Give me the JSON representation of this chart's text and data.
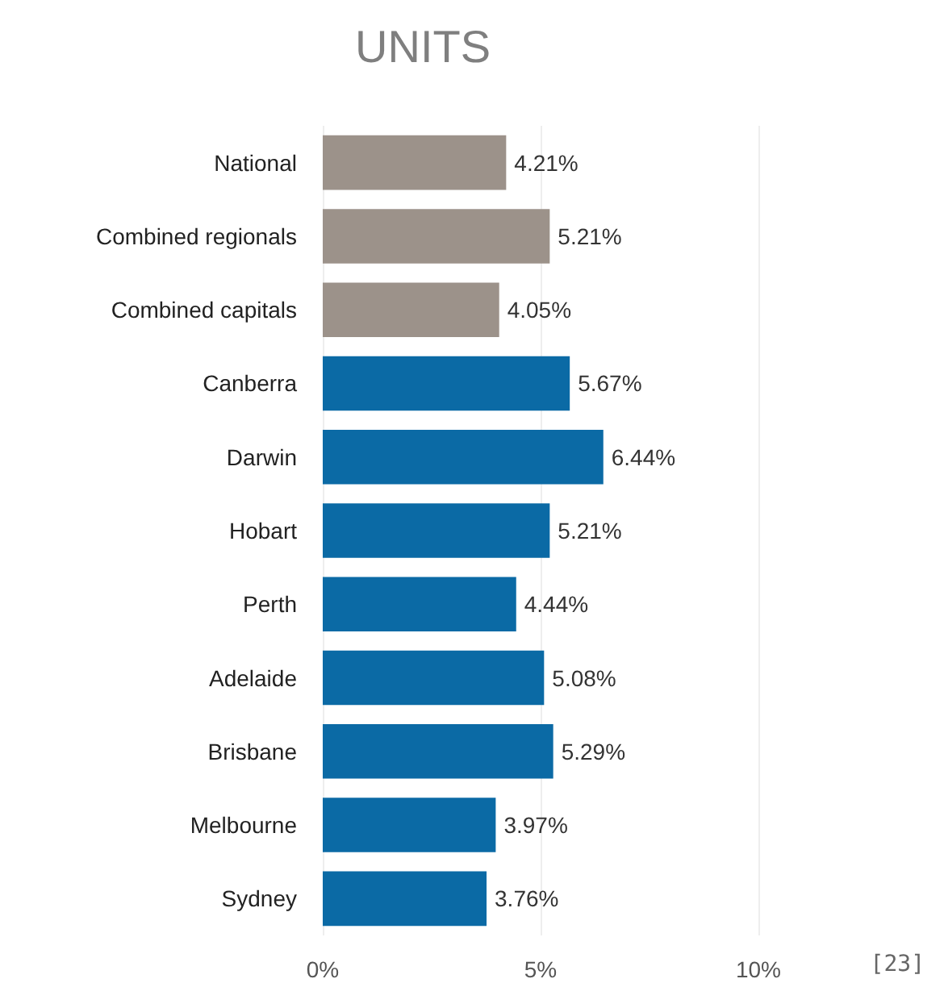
{
  "chart_data": {
    "type": "bar",
    "orientation": "horizontal",
    "title": "UNITS",
    "categories": [
      "National",
      "Combined regionals",
      "Combined capitals",
      "Canberra",
      "Darwin",
      "Hobart",
      "Perth",
      "Adelaide",
      "Brisbane",
      "Melbourne",
      "Sydney"
    ],
    "values": [
      4.21,
      5.21,
      4.05,
      5.67,
      6.44,
      5.21,
      4.44,
      5.08,
      5.29,
      3.97,
      3.76
    ],
    "colors": [
      "#9c928a",
      "#9c928a",
      "#9c928a",
      "#0b6aa5",
      "#0b6aa5",
      "#0b6aa5",
      "#0b6aa5",
      "#0b6aa5",
      "#0b6aa5",
      "#0b6aa5",
      "#0b6aa5"
    ],
    "value_labels": [
      "4.21%",
      "5.21%",
      "4.05%",
      "5.67%",
      "6.44%",
      "5.21%",
      "4.44%",
      "5.08%",
      "5.29%",
      "3.97%",
      "3.76%"
    ],
    "xlim": [
      0,
      10
    ],
    "xticks": [
      {
        "value": 0,
        "label": "0%"
      },
      {
        "value": 5,
        "label": "5%"
      },
      {
        "value": 10,
        "label": "10%"
      }
    ],
    "grid": "x",
    "annotations": [
      "[23]"
    ]
  }
}
